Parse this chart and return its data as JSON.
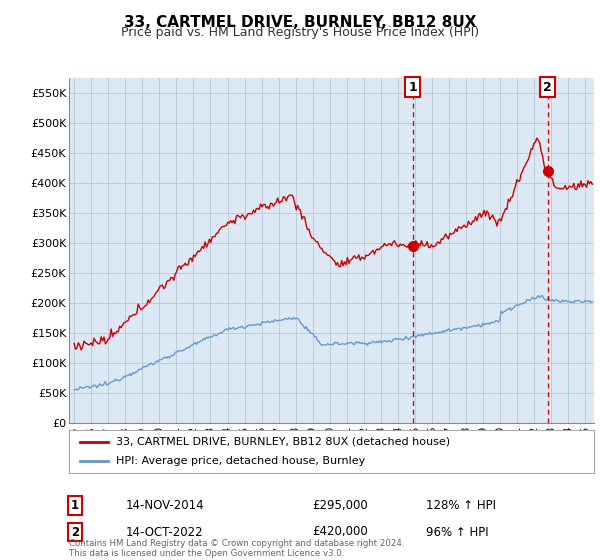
{
  "title": "33, CARTMEL DRIVE, BURNLEY, BB12 8UX",
  "subtitle": "Price paid vs. HM Land Registry's House Price Index (HPI)",
  "title_fontsize": 11,
  "subtitle_fontsize": 9,
  "ylabel_ticks": [
    "£0",
    "£50K",
    "£100K",
    "£150K",
    "£200K",
    "£250K",
    "£300K",
    "£350K",
    "£400K",
    "£450K",
    "£500K",
    "£550K"
  ],
  "ytick_values": [
    0,
    50000,
    100000,
    150000,
    200000,
    250000,
    300000,
    350000,
    400000,
    450000,
    500000,
    550000
  ],
  "ylim": [
    0,
    575000
  ],
  "background_color": "#ffffff",
  "plot_bg_color": "#dce9f5",
  "grid_color": "#bbccdd",
  "line1_color": "#cc0000",
  "line2_color": "#6699cc",
  "legend_label1": "33, CARTMEL DRIVE, BURNLEY, BB12 8UX (detached house)",
  "legend_label2": "HPI: Average price, detached house, Burnley",
  "annotation1_date": "14-NOV-2014",
  "annotation1_price": "£295,000",
  "annotation1_hpi": "128% ↑ HPI",
  "annotation2_date": "14-OCT-2022",
  "annotation2_price": "£420,000",
  "annotation2_hpi": "96% ↑ HPI",
  "footer": "Contains HM Land Registry data © Crown copyright and database right 2024.\nThis data is licensed under the Open Government Licence v3.0.",
  "vline1_x": 2014.87,
  "vline2_x": 2022.79,
  "sale1_x": 2014.87,
  "sale1_y": 295000,
  "sale2_x": 2022.79,
  "sale2_y": 420000,
  "xlim_left": 1994.7,
  "xlim_right": 2025.5
}
